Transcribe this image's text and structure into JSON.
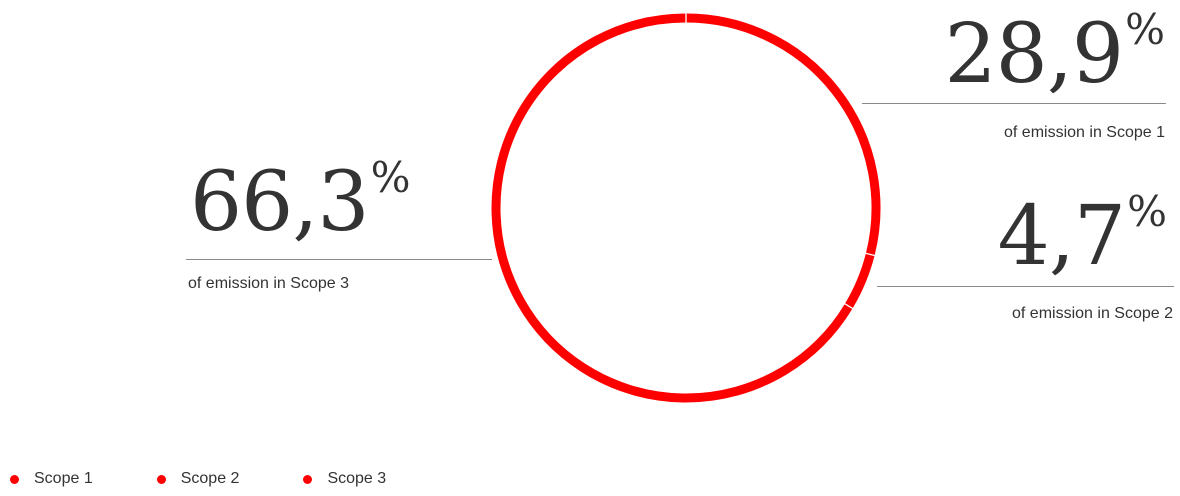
{
  "chart_data": {
    "type": "pie",
    "variant": "donut",
    "categories": [
      "Scope 1",
      "Scope 2",
      "Scope 3"
    ],
    "values": [
      28.9,
      4.7,
      66.3
    ],
    "unit": "%",
    "colors": [
      "#ff0000",
      "#ff0000",
      "#ff0000"
    ],
    "legend_position": "bottom-left"
  },
  "callouts": {
    "scope1": {
      "value": "28,9",
      "unit": "%",
      "caption": "of emission in Scope 1"
    },
    "scope2": {
      "value": "4,7",
      "unit": "%",
      "caption": "of emission in Scope 2"
    },
    "scope3": {
      "value": "66,3",
      "unit": "%",
      "caption": "of emission in Scope 3"
    }
  },
  "legend": [
    {
      "label": "Scope 1",
      "color": "#ff0000"
    },
    {
      "label": "Scope 2",
      "color": "#ff0000"
    },
    {
      "label": "Scope 3",
      "color": "#ff0000"
    }
  ]
}
